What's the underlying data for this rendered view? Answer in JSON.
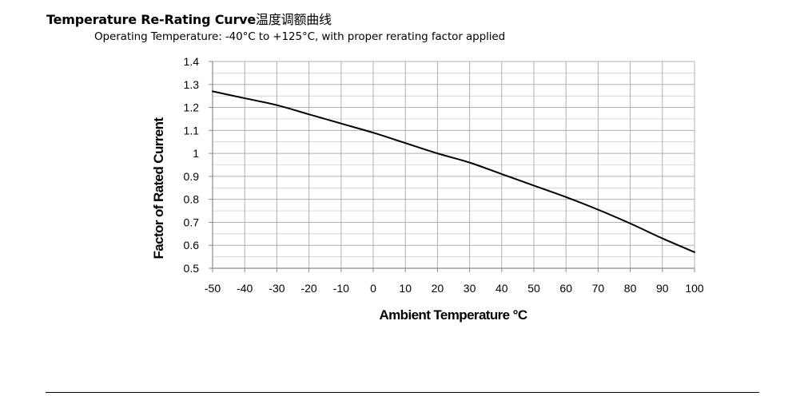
{
  "document": {
    "title": "Temperature Re-Rating Curve",
    "title_cn": "温度调额曲线",
    "subtitle": "Operating Temperature:  -40°C to +125°C, with proper rerating factor applied"
  },
  "chart_data": {
    "type": "line",
    "title": "",
    "xlabel": "Ambient Temperature °C",
    "ylabel": "Factor of Rated Current",
    "xlim": [
      -50,
      100
    ],
    "ylim": [
      0.5,
      1.4
    ],
    "xticks": [
      -50,
      -40,
      -30,
      -20,
      -10,
      0,
      10,
      20,
      30,
      40,
      50,
      60,
      70,
      80,
      90,
      100
    ],
    "xtick_labels": [
      "-50",
      "-40",
      "-30",
      "-20",
      "-10",
      "0",
      "10",
      "20",
      "30",
      "40",
      "50",
      "60",
      "70",
      "80",
      "90",
      "100"
    ],
    "yticks": [
      0.5,
      0.6,
      0.7,
      0.8,
      0.9,
      1.0,
      1.1,
      1.2,
      1.3,
      1.4
    ],
    "ytick_labels": [
      "0.5",
      "0.6",
      "0.7",
      "0.8",
      "0.9",
      "1",
      "1.1",
      "1.2",
      "1.3",
      "1.4"
    ],
    "grid": true,
    "legend": "none",
    "series": [
      {
        "x": [
          -50,
          -40,
          -30,
          -20,
          -10,
          0,
          10,
          20,
          30,
          40,
          50,
          60,
          70,
          80,
          90,
          100
        ],
        "y": [
          1.27,
          1.24,
          1.21,
          1.17,
          1.13,
          1.09,
          1.045,
          1.0,
          0.96,
          0.91,
          0.86,
          0.81,
          0.755,
          0.695,
          0.63,
          0.57
        ],
        "color": "#000000"
      }
    ],
    "colors": {
      "grid": "#b0b0b0",
      "axis": "#8c8c8c",
      "line": "#000000"
    }
  }
}
